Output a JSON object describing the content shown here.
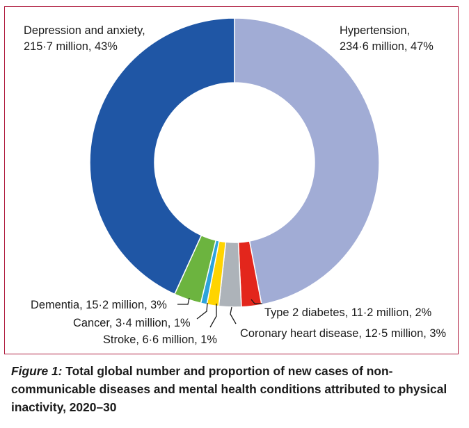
{
  "chart_data": {
    "type": "pie",
    "donut": true,
    "start_angle_deg": 0,
    "direction": "clockwise",
    "slices": [
      {
        "label": "Hypertension",
        "value": 234.6,
        "value_text": "234·6 million",
        "percent": "47%",
        "color": "#a1acd5"
      },
      {
        "label": "Type 2 diabetes",
        "value": 11.2,
        "value_text": "11·2 million",
        "percent": "2%",
        "color": "#e3261c"
      },
      {
        "label": "Coronary heart disease",
        "value": 12.5,
        "value_text": "12·5 million",
        "percent": "3%",
        "color": "#adb3b9"
      },
      {
        "label": "Stroke",
        "value": 6.6,
        "value_text": "6·6 million",
        "percent": "1%",
        "color": "#ffd400"
      },
      {
        "label": "Cancer",
        "value": 3.4,
        "value_text": "3·4 million",
        "percent": "1%",
        "color": "#2ea4dc"
      },
      {
        "label": "Dementia",
        "value": 15.2,
        "value_text": "15·2 million",
        "percent": "3%",
        "color": "#6cb43f"
      },
      {
        "label": "Depression and anxiety",
        "value": 215.7,
        "value_text": "215·7 million",
        "percent": "43%",
        "color": "#1f56a5"
      }
    ]
  },
  "labels": {
    "hypertension": {
      "line1": "Hypertension,",
      "line2": "234·6 million, 47%"
    },
    "depression": {
      "line1": "Depression and anxiety,",
      "line2": "215·7 million, 43%"
    },
    "diabetes": "Type 2 diabetes, 11·2 million, 2%",
    "chd": "Coronary heart disease, 12·5 million, 3%",
    "dementia": "Dementia, 15·2 million, 3%",
    "cancer": "Cancer, 3·4 million, 1%",
    "stroke": "Stroke, 6·6 million, 1%"
  },
  "caption": {
    "figure_label": "Figure 1:",
    "text": " Total global number and proportion of new cases of non-communicable diseases and mental health conditions attributed to physical inactivity, 2020–30"
  }
}
